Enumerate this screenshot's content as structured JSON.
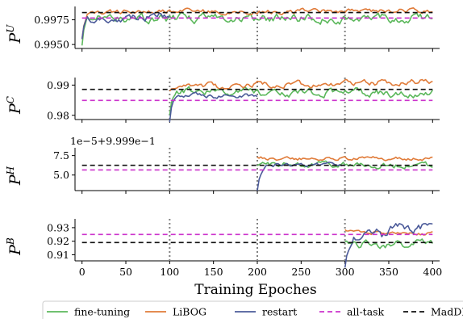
{
  "colors": {
    "fine-tuning": "#5cb85c",
    "LiBOG": "#e07b39",
    "restart": "#4c5b9a",
    "all-task": "#cc33cc",
    "MadDE": "#111111",
    "vline": "#808080"
  },
  "chart_data": [
    {
      "type": "line",
      "ylabel_base": "P",
      "ylabel_sup": "U",
      "yticks": [
        "0.9950",
        "0.9975"
      ],
      "ylim": [
        0.9946,
        0.99885
      ],
      "xlim": [
        -8,
        408
      ],
      "xticks": [
        0,
        50,
        100,
        150,
        200,
        250,
        300,
        350,
        400
      ],
      "vlines": [
        100,
        200,
        300
      ],
      "series": [
        {
          "name": "fine-tuning",
          "x": [
            0,
            400
          ],
          "style": "solid",
          "values_desc": "starts ~0.9949 at epoch 0, rises to ~0.9976 by epoch 5, then fluctuates between 0.9970 and 0.9983 to epoch 400"
        },
        {
          "name": "LiBOG",
          "x": [
            0,
            400
          ],
          "style": "solid",
          "values_desc": "starts ~0.9955, rises to ~0.9978 by epoch 5, fluctuates 0.9980–0.9987 to epoch 400"
        },
        {
          "name": "restart",
          "x": [
            0,
            100
          ],
          "style": "solid",
          "values_desc": "starts ~0.9955, rises to ~0.9977 by epoch 5, fluctuates 0.9972–0.9983 to epoch 100"
        },
        {
          "name": "all-task",
          "value": 0.99768,
          "style": "dashed"
        },
        {
          "name": "MadDE",
          "value": 0.99823,
          "style": "dashed"
        }
      ]
    },
    {
      "type": "line",
      "ylabel_base": "P",
      "ylabel_sup": "C",
      "yticks": [
        "0.98",
        "0.99"
      ],
      "ylim": [
        0.9786,
        0.9925
      ],
      "xlim": [
        -8,
        408
      ],
      "xticks": [
        0,
        50,
        100,
        150,
        200,
        250,
        300,
        350,
        400
      ],
      "vlines": [
        100,
        200,
        300
      ],
      "series": [
        {
          "name": "fine-tuning",
          "x": [
            100,
            400
          ],
          "style": "solid",
          "values_desc": "starts ~0.9800 at epoch 100, rises to ~0.9870, drifts 0.9860–0.9895 to epoch 400"
        },
        {
          "name": "LiBOG",
          "x": [
            100,
            400
          ],
          "style": "solid",
          "values_desc": "starts ~0.9880 at epoch 100, rises gradually 0.9885–0.9918 to epoch 400"
        },
        {
          "name": "restart",
          "x": [
            100,
            200
          ],
          "style": "solid",
          "values_desc": "starts ~0.9778 at epoch 100, rises to ~0.9860 by epoch 105, fluctuates 0.9855–0.9875 to epoch 200"
        },
        {
          "name": "all-task",
          "value": 0.98493,
          "style": "dashed"
        },
        {
          "name": "MadDE",
          "value": 0.98858,
          "style": "dashed"
        }
      ]
    },
    {
      "type": "line",
      "ylabel_base": "P",
      "ylabel_sup": "H",
      "offset_text": "1e−5+9.999e−1",
      "yticks": [
        "5.0",
        "7.5"
      ],
      "ylim": [
        3.0,
        8.5
      ],
      "xlim": [
        -8,
        408
      ],
      "xticks": [
        0,
        50,
        100,
        150,
        200,
        250,
        300,
        350,
        400
      ],
      "vlines": [
        100,
        200,
        300
      ],
      "series": [
        {
          "name": "fine-tuning",
          "x": [
            200,
            400
          ],
          "style": "solid",
          "values_desc": "starts ~6.2 at epoch 200, fluctuates 5.8–6.8 to epoch 400"
        },
        {
          "name": "LiBOG",
          "x": [
            200,
            400
          ],
          "style": "solid",
          "values_desc": "starts ~7.3 at epoch 200, fluctuates 6.8–7.4 to epoch 400"
        },
        {
          "name": "restart",
          "x": [
            200,
            300
          ],
          "style": "solid",
          "values_desc": "starts ~3.0 at epoch 200, rises to ~6.3 by epoch 210, fluctuates 6.0–6.6 to epoch 300"
        },
        {
          "name": "all-task",
          "value": 5.65,
          "style": "dashed"
        },
        {
          "name": "MadDE",
          "value": 6.25,
          "style": "dashed"
        }
      ]
    },
    {
      "type": "line",
      "ylabel_base": "P",
      "ylabel_sup": "B",
      "yticks": [
        "0.91",
        "0.92",
        "0.93"
      ],
      "ylim": [
        0.9055,
        0.9365
      ],
      "xlim": [
        -8,
        408
      ],
      "xticks": [
        0,
        50,
        100,
        150,
        200,
        250,
        300,
        350,
        400
      ],
      "vlines": [
        100,
        200,
        300
      ],
      "series": [
        {
          "name": "fine-tuning",
          "x": [
            300,
            400
          ],
          "style": "solid",
          "values_desc": "starts ~0.9195 at epoch 300, fluctuates 0.9140–0.9220 to epoch 400"
        },
        {
          "name": "LiBOG",
          "x": [
            300,
            400
          ],
          "style": "solid",
          "values_desc": "starts ~0.9285 at epoch 300, fluctuates 0.9240–0.9280 to epoch 400"
        },
        {
          "name": "restart",
          "x": [
            300,
            400
          ],
          "style": "solid",
          "values_desc": "starts ~0.9005 at epoch 300, rises to ~0.9200 by epoch 310, climbs to ~0.9320 by epoch 400"
        },
        {
          "name": "all-task",
          "value": 0.925,
          "style": "dashed"
        },
        {
          "name": "MadDE",
          "value": 0.919,
          "style": "dashed"
        }
      ]
    }
  ],
  "xlabel": "Training Epoches",
  "legend": {
    "position": "bottom",
    "entries": [
      {
        "label": "fine-tuning",
        "style": "solid",
        "color_key": "fine-tuning"
      },
      {
        "label": "LiBOG",
        "style": "solid",
        "color_key": "LiBOG"
      },
      {
        "label": "restart",
        "style": "solid",
        "color_key": "restart"
      },
      {
        "label": "all-task",
        "style": "dashed",
        "color_key": "all-task"
      },
      {
        "label": "MadDE",
        "style": "dashed",
        "color_key": "MadDE"
      }
    ]
  }
}
